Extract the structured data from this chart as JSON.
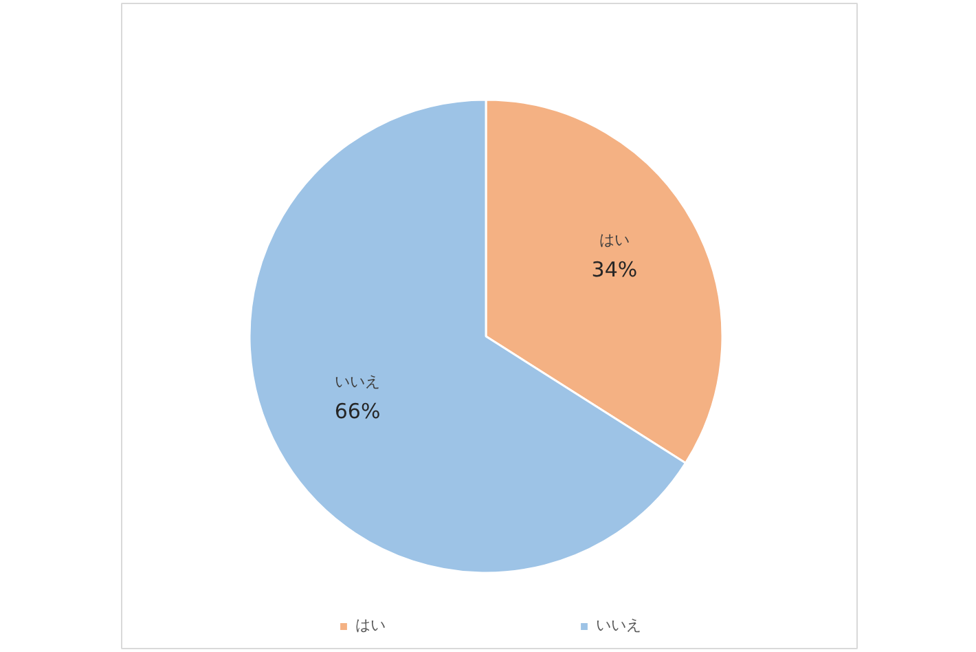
{
  "chart_data": {
    "type": "pie",
    "categories": [
      "はい",
      "いいえ"
    ],
    "values": [
      34,
      66
    ],
    "value_labels": [
      "34%",
      "66%"
    ],
    "colors": [
      "#f4b183",
      "#9dc3e6"
    ],
    "legend": "bottom"
  }
}
